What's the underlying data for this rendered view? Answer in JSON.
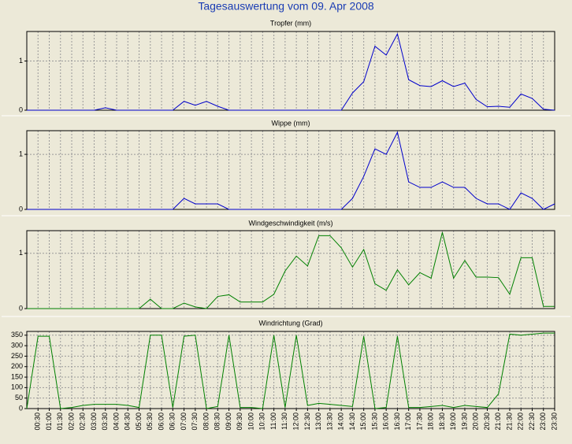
{
  "title": "Tagesauswertung vom 09. Apr 2008",
  "chart_data": [
    {
      "type": "line",
      "title": "Tropfer (mm)",
      "color": "#0000cc",
      "grid": true,
      "ylim": [
        0,
        1.6
      ],
      "yticks": [
        0,
        1
      ],
      "values": [
        0,
        0,
        0,
        0,
        0,
        0,
        0,
        0.05,
        0,
        0,
        0,
        0,
        0,
        0,
        0.18,
        0.1,
        0.18,
        0.08,
        0,
        0,
        0,
        0,
        0,
        0,
        0,
        0,
        0,
        0,
        0,
        0.35,
        0.58,
        1.3,
        1.12,
        1.55,
        0.62,
        0.5,
        0.48,
        0.6,
        0.48,
        0.55,
        0.22,
        0.07,
        0.08,
        0.06,
        0.33,
        0.24,
        0.02,
        0
      ]
    },
    {
      "type": "line",
      "title": "Wippe (mm)",
      "color": "#0000cc",
      "grid": true,
      "ylim": [
        0,
        1.43
      ],
      "yticks": [
        0,
        1
      ],
      "values": [
        0,
        0,
        0,
        0,
        0,
        0,
        0,
        0,
        0,
        0,
        0,
        0,
        0,
        0,
        0.2,
        0.1,
        0.1,
        0.1,
        0,
        0,
        0,
        0,
        0,
        0,
        0,
        0,
        0,
        0,
        0,
        0.2,
        0.6,
        1.1,
        1.0,
        1.4,
        0.5,
        0.4,
        0.4,
        0.5,
        0.4,
        0.4,
        0.2,
        0.1,
        0.1,
        0,
        0.3,
        0.2,
        0,
        0.1
      ]
    },
    {
      "type": "line",
      "title": "Windgeschwindigkeit (m/s)",
      "color": "#008000",
      "grid": true,
      "ylim": [
        0,
        1.41
      ],
      "yticks": [
        0,
        1
      ],
      "values": [
        0,
        0,
        0,
        0,
        0,
        0,
        0,
        0,
        0,
        0,
        0,
        0.17,
        0,
        0,
        0.1,
        0.03,
        0,
        0.22,
        0.25,
        0.12,
        0.12,
        0.12,
        0.26,
        0.68,
        0.95,
        0.77,
        1.32,
        1.32,
        1.1,
        0.75,
        1.07,
        0.45,
        0.33,
        0.7,
        0.43,
        0.65,
        0.55,
        1.38,
        0.55,
        0.87,
        0.57,
        0.57,
        0.56,
        0.26,
        0.92,
        0.92,
        0.04,
        0.04
      ]
    },
    {
      "type": "line",
      "title": "Windrichtung (Grad)",
      "color": "#008000",
      "grid": true,
      "ylim": [
        0,
        368
      ],
      "yticks": [
        0,
        50,
        100,
        150,
        200,
        250,
        300,
        350
      ],
      "categories": [
        null,
        "00:30",
        "01:00",
        "01:30",
        "02:00",
        "02:30",
        "03:00",
        "03:30",
        "04:00",
        "04:30",
        "05:00",
        "05:30",
        "06:00",
        "06:30",
        "07:00",
        "07:30",
        "08:00",
        "08:30",
        "09:00",
        "09:30",
        "10:00",
        "10:30",
        "11:00",
        "11:30",
        "12:00",
        "12:30",
        "13:00",
        "13:30",
        "14:00",
        "14:30",
        "15:00",
        "15:30",
        "16:00",
        "16:30",
        "17:00",
        "17:30",
        "18:00",
        "18:30",
        "19:00",
        "19:30",
        "20:00",
        "20:30",
        "21:00",
        "21:30",
        "22:00",
        "22:30",
        "23:00",
        "23:30"
      ],
      "values": [
        0,
        345,
        345,
        0,
        5,
        15,
        20,
        20,
        20,
        15,
        5,
        350,
        350,
        5,
        345,
        350,
        0,
        10,
        350,
        5,
        5,
        0,
        350,
        5,
        350,
        15,
        25,
        20,
        15,
        10,
        345,
        0,
        5,
        345,
        5,
        5,
        10,
        15,
        5,
        15,
        10,
        5,
        70,
        355,
        350,
        355,
        360,
        360
      ]
    }
  ]
}
